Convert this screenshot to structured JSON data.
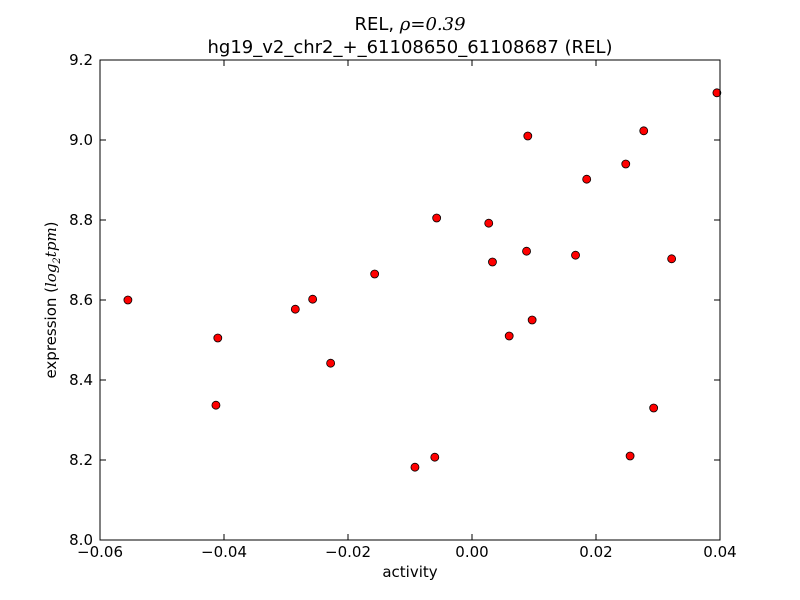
{
  "chart_data": {
    "type": "scatter",
    "title_prefix": "REL, ",
    "title_rho_symbol": "ρ",
    "title_rho_value": "=0.39",
    "subtitle": "hg19_v2_chr2_+_61108650_61108687 (REL)",
    "xlabel": "activity",
    "ylabel_prefix": "expression (",
    "ylabel_log": "log",
    "ylabel_sub": "2",
    "ylabel_unit": "tpm",
    "ylabel_suffix": ")",
    "xlim": [
      -0.06,
      0.04
    ],
    "ylim": [
      8.0,
      9.2
    ],
    "xticks": [
      -0.06,
      -0.04,
      -0.02,
      0.0,
      0.02,
      0.04
    ],
    "xtick_labels": [
      "−0.06",
      "−0.04",
      "−0.02",
      "0.00",
      "0.02",
      "0.04"
    ],
    "yticks": [
      8.0,
      8.2,
      8.4,
      8.6,
      8.8,
      9.0,
      9.2
    ],
    "ytick_labels": [
      "8.0",
      "8.2",
      "8.4",
      "8.6",
      "8.8",
      "9.0",
      "9.2"
    ],
    "grid": false,
    "marker_color": "#ff0000",
    "marker_edge": "#000000",
    "points": [
      {
        "x": -0.0555,
        "y": 8.6
      },
      {
        "x": -0.041,
        "y": 8.505
      },
      {
        "x": -0.0413,
        "y": 8.337
      },
      {
        "x": -0.0285,
        "y": 8.577
      },
      {
        "x": -0.0257,
        "y": 8.602
      },
      {
        "x": -0.0228,
        "y": 8.442
      },
      {
        "x": -0.0157,
        "y": 8.665
      },
      {
        "x": -0.0092,
        "y": 8.182
      },
      {
        "x": -0.006,
        "y": 8.207
      },
      {
        "x": -0.0057,
        "y": 8.805
      },
      {
        "x": 0.0027,
        "y": 8.792
      },
      {
        "x": 0.0033,
        "y": 8.695
      },
      {
        "x": 0.006,
        "y": 8.51
      },
      {
        "x": 0.0088,
        "y": 8.722
      },
      {
        "x": 0.009,
        "y": 9.01
      },
      {
        "x": 0.0097,
        "y": 8.55
      },
      {
        "x": 0.0167,
        "y": 8.712
      },
      {
        "x": 0.0185,
        "y": 8.902
      },
      {
        "x": 0.0248,
        "y": 8.94
      },
      {
        "x": 0.0255,
        "y": 8.21
      },
      {
        "x": 0.0277,
        "y": 9.023
      },
      {
        "x": 0.0293,
        "y": 8.33
      },
      {
        "x": 0.0322,
        "y": 8.703
      },
      {
        "x": 0.0395,
        "y": 9.118
      }
    ]
  }
}
